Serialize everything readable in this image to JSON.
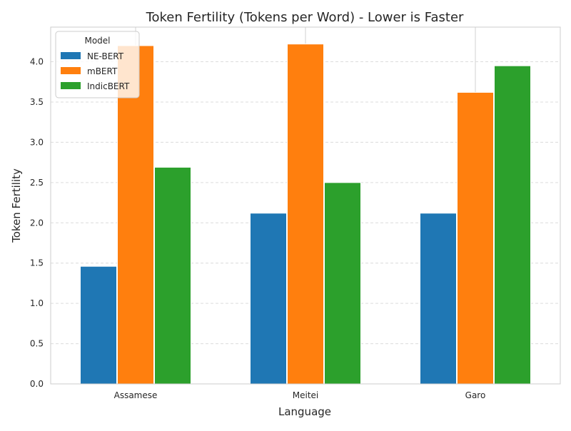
{
  "chart_data": {
    "type": "bar",
    "title": "Token Fertility (Tokens per Word) - Lower is Faster",
    "xlabel": "Language",
    "ylabel": "Token Fertility",
    "categories": [
      "Assamese",
      "Meitei",
      "Garo"
    ],
    "series": [
      {
        "name": "NE-BERT",
        "color": "#1f77b4",
        "values": [
          1.46,
          2.12,
          2.12
        ]
      },
      {
        "name": "mBERT",
        "color": "#ff7f0e",
        "values": [
          4.2,
          4.22,
          3.62
        ]
      },
      {
        "name": "IndicBERT",
        "color": "#2ca02c",
        "values": [
          2.69,
          2.5,
          3.95
        ]
      }
    ],
    "ylim": [
      0,
      4.43
    ],
    "yticks": [
      "0.0",
      "0.5",
      "1.0",
      "1.5",
      "2.0",
      "2.5",
      "3.0",
      "3.5",
      "4.0"
    ],
    "legend": {
      "title": "Model",
      "position": "top-left"
    },
    "grid": {
      "y": true,
      "x": true,
      "y_style": "dashed"
    }
  }
}
